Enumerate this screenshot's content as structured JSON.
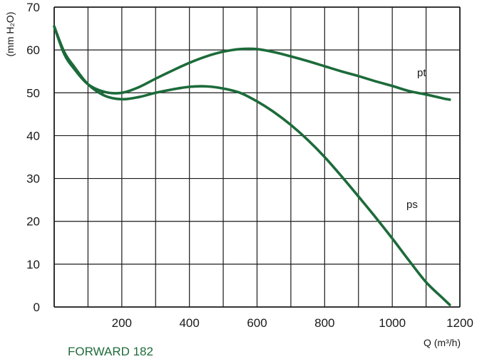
{
  "model_label": "FORWARD 182",
  "colors": {
    "curve": "#1c6b3a",
    "grid": "#1a1a1a"
  },
  "chart_data": {
    "type": "line",
    "xlabel": "Q (m³/h)",
    "ylabel": "(mm H₂O)",
    "xlim": [
      0,
      1200
    ],
    "ylim": [
      0,
      70
    ],
    "xticks": [
      200,
      400,
      600,
      800,
      1000,
      1200
    ],
    "yticks": [
      0,
      10,
      20,
      30,
      40,
      50,
      60,
      70
    ],
    "grid": true,
    "series": [
      {
        "name": "pt",
        "x": [
          0,
          30,
          60,
          100,
          150,
          200,
          250,
          300,
          350,
          400,
          450,
          500,
          550,
          600,
          650,
          700,
          750,
          800,
          850,
          900,
          950,
          1000,
          1050,
          1100,
          1150,
          1170
        ],
        "y": [
          65.5,
          59,
          55.5,
          52,
          50.2,
          50,
          51.3,
          53.3,
          55.2,
          57,
          58.5,
          59.6,
          60.2,
          60.2,
          59.5,
          58.5,
          57.4,
          56.2,
          55,
          53.9,
          52.7,
          51.6,
          50.4,
          49.6,
          48.7,
          48.4
        ]
      },
      {
        "name": "ps",
        "x": [
          0,
          30,
          60,
          100,
          150,
          200,
          250,
          300,
          350,
          400,
          450,
          500,
          550,
          600,
          650,
          700,
          750,
          800,
          850,
          900,
          950,
          1000,
          1050,
          1100,
          1150,
          1170
        ],
        "y": [
          65.5,
          59.5,
          56,
          52,
          49.3,
          48.5,
          49,
          50,
          50.8,
          51.4,
          51.5,
          51,
          50,
          48,
          45.5,
          42.5,
          39,
          35,
          30.5,
          25.8,
          21,
          16,
          10.8,
          5.8,
          2,
          0.5
        ]
      }
    ]
  }
}
